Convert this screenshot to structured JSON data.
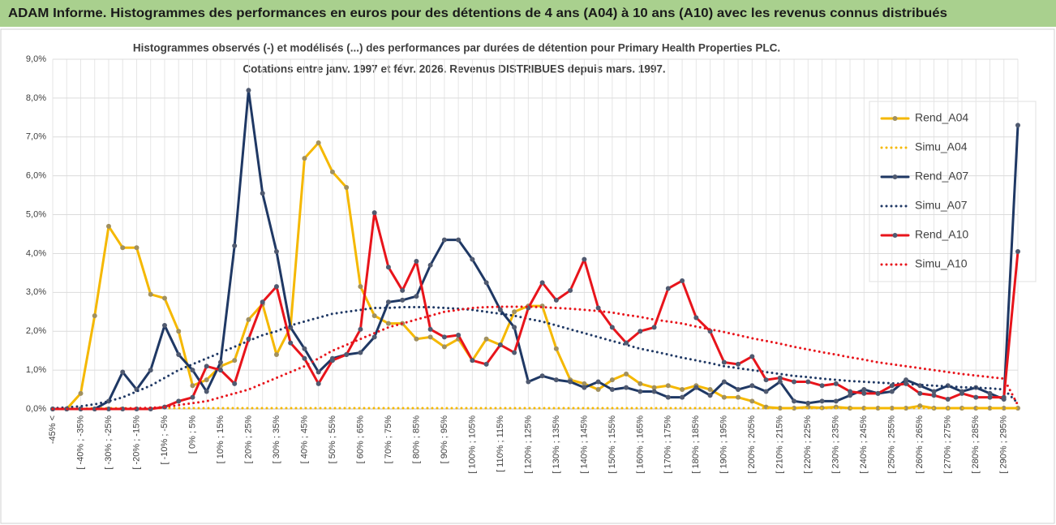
{
  "chart_data": {
    "type": "line",
    "title": "ADAM Informe. Histogrammes des performances en euros pour des détentions de 4 ans (A04) à 10 ans (A10) avec les revenus connus distribués",
    "subtitle": [
      "Histogrammes observés (-) et modélisés (...) des performances par durées de détention pour Primary Health Properties PLC.",
      "Cotations entre janv. 1997 et févr. 2026. Revenus DISTRIBUES depuis mars. 1997."
    ],
    "categories": [
      "-45% <",
      null,
      "[ -40% ; -35%",
      null,
      "[ -30% ; -25%",
      null,
      "[ -20% ; -15%",
      null,
      "[ -10% ; -5%",
      null,
      "[ 0% ; 5%",
      null,
      "[ 10% ; 15%",
      null,
      "[ 20% ; 25%",
      null,
      "[ 30% ; 35%",
      null,
      "[ 40% ; 45%",
      null,
      "[ 50% ; 55%",
      null,
      "[ 60% ; 65%",
      null,
      "[ 70% ; 75%",
      null,
      "[ 80% ; 85%",
      null,
      "[ 90% ; 95%",
      null,
      "[ 100% ; 105%",
      null,
      "[ 110% ; 115%",
      null,
      "[ 120% ; 125%",
      null,
      "[ 130% ; 135%",
      null,
      "[ 140% ; 145%",
      null,
      "[ 150% ; 155%",
      null,
      "[ 160% ; 165%",
      null,
      "[ 170% ; 175%",
      null,
      "[ 180% ; 185%",
      null,
      "[ 190% ; 195%",
      null,
      "[ 200% ; 205%",
      null,
      "[ 210% ; 215%",
      null,
      "[ 220% ; 225%",
      null,
      "[ 230% ; 235%",
      null,
      "[ 240% ; 245%",
      null,
      "[ 250% ; 255%",
      null,
      "[ 260% ; 265%",
      null,
      "[ 270% ; 275%",
      null,
      "[ 280% ; 285%",
      null,
      "[ 290% ; 295%",
      null
    ],
    "series": [
      {
        "name": "Rend_A04",
        "color": "#f5b800",
        "style": "solid",
        "markers": true,
        "values": [
          0,
          0,
          0.4,
          2.4,
          4.7,
          4.15,
          4.15,
          2.95,
          2.85,
          2.0,
          0.6,
          0.75,
          1.1,
          1.25,
          2.3,
          2.7,
          1.4,
          2.1,
          6.45,
          6.85,
          6.1,
          5.7,
          3.15,
          2.4,
          2.2,
          2.2,
          1.8,
          1.85,
          1.6,
          1.8,
          1.25,
          1.8,
          1.65,
          2.5,
          2.65,
          2.65,
          1.55,
          0.75,
          0.65,
          0.5,
          0.75,
          0.9,
          0.65,
          0.55,
          0.6,
          0.5,
          0.6,
          0.5,
          0.3,
          0.3,
          0.2,
          0.05,
          0.02,
          0.02,
          0.05,
          0.03,
          0.05,
          0.02,
          0.02,
          0.02,
          0.02,
          0.02,
          0.08,
          0.02,
          0.02,
          0.02,
          0.02,
          0.02,
          0.02,
          0.02
        ]
      },
      {
        "name": "Simu_A04",
        "color": "#f5b800",
        "style": "dotted",
        "markers": false,
        "values": [
          0,
          0,
          0.01,
          0.02,
          0.02,
          0.02,
          0.02,
          0.02,
          0.02,
          0.02,
          0.02,
          0.02,
          0.02,
          0.02,
          0.02,
          0.02,
          0.02,
          0.02,
          0.02,
          0.02,
          0.02,
          0.02,
          0.02,
          0.02,
          0.02,
          0.02,
          0.02,
          0.02,
          0.02,
          0.02,
          0.02,
          0.02,
          0.02,
          0.02,
          0.02,
          0.02,
          0.02,
          0.02,
          0.02,
          0.02,
          0.02,
          0.02,
          0.02,
          0.02,
          0.02,
          0.02,
          0.02,
          0.02,
          0.02,
          0.02,
          0.02,
          0.02,
          0.02,
          0.02,
          0.02,
          0.02,
          0.02,
          0.02,
          0.02,
          0.02,
          0.02,
          0.02,
          0.02,
          0.02,
          0.02,
          0.02,
          0.02,
          0.02,
          0.02,
          0.02
        ]
      },
      {
        "name": "Rend_A07",
        "color": "#1f3864",
        "style": "solid",
        "markers": true,
        "values": [
          0,
          0,
          0,
          0,
          0.2,
          0.95,
          0.5,
          1.0,
          2.15,
          1.4,
          1.0,
          0.45,
          1.2,
          4.2,
          8.2,
          5.55,
          4.05,
          2.1,
          1.55,
          0.95,
          1.3,
          1.4,
          1.45,
          1.85,
          2.75,
          2.8,
          2.9,
          3.7,
          4.35,
          4.35,
          3.85,
          3.25,
          2.55,
          2.1,
          0.7,
          0.85,
          0.75,
          0.7,
          0.55,
          0.7,
          0.5,
          0.55,
          0.45,
          0.45,
          0.3,
          0.3,
          0.55,
          0.35,
          0.7,
          0.5,
          0.6,
          0.45,
          0.7,
          0.2,
          0.15,
          0.2,
          0.2,
          0.35,
          0.5,
          0.4,
          0.45,
          0.75,
          0.6,
          0.45,
          0.6,
          0.45,
          0.55,
          0.4,
          0.25,
          7.3
        ]
      },
      {
        "name": "Simu_A07",
        "color": "#1f3864",
        "style": "dotted",
        "markers": false,
        "values": [
          0.02,
          0.04,
          0.07,
          0.12,
          0.2,
          0.3,
          0.45,
          0.6,
          0.8,
          1.0,
          1.15,
          1.3,
          1.45,
          1.6,
          1.75,
          1.9,
          2.0,
          2.15,
          2.25,
          2.35,
          2.45,
          2.5,
          2.55,
          2.6,
          2.6,
          2.62,
          2.62,
          2.62,
          2.6,
          2.58,
          2.55,
          2.5,
          2.45,
          2.4,
          2.32,
          2.25,
          2.15,
          2.05,
          1.95,
          1.85,
          1.75,
          1.65,
          1.55,
          1.48,
          1.4,
          1.32,
          1.25,
          1.18,
          1.1,
          1.05,
          1.0,
          0.95,
          0.9,
          0.85,
          0.82,
          0.78,
          0.75,
          0.72,
          0.7,
          0.68,
          0.66,
          0.64,
          0.62,
          0.6,
          0.58,
          0.56,
          0.55,
          0.53,
          0.5,
          0.15
        ]
      },
      {
        "name": "Rend_A10",
        "color": "#e8141b",
        "style": "solid",
        "markers": true,
        "values": [
          0,
          0,
          0,
          0,
          0,
          0,
          0,
          0,
          0.05,
          0.2,
          0.3,
          1.1,
          1.0,
          0.65,
          1.8,
          2.75,
          3.15,
          1.7,
          1.3,
          0.65,
          1.25,
          1.4,
          2.05,
          5.05,
          3.65,
          3.05,
          3.8,
          2.05,
          1.85,
          1.9,
          1.25,
          1.15,
          1.65,
          1.45,
          2.6,
          3.25,
          2.8,
          3.05,
          3.85,
          2.6,
          2.1,
          1.7,
          2.0,
          2.1,
          3.1,
          3.3,
          2.35,
          2.0,
          1.2,
          1.15,
          1.35,
          0.75,
          0.8,
          0.7,
          0.7,
          0.6,
          0.65,
          0.45,
          0.4,
          0.4,
          0.6,
          0.65,
          0.4,
          0.35,
          0.25,
          0.4,
          0.3,
          0.3,
          0.3,
          4.05
        ]
      },
      {
        "name": "Simu_A10",
        "color": "#e8141b",
        "style": "dotted",
        "markers": false,
        "values": [
          0,
          0,
          0,
          0,
          0,
          0.01,
          0.02,
          0.03,
          0.05,
          0.1,
          0.15,
          0.2,
          0.3,
          0.4,
          0.5,
          0.65,
          0.8,
          0.95,
          1.1,
          1.3,
          1.5,
          1.65,
          1.8,
          1.95,
          2.1,
          2.2,
          2.3,
          2.4,
          2.5,
          2.55,
          2.6,
          2.62,
          2.63,
          2.63,
          2.63,
          2.62,
          2.6,
          2.58,
          2.55,
          2.52,
          2.48,
          2.42,
          2.37,
          2.3,
          2.25,
          2.2,
          2.12,
          2.05,
          1.98,
          1.9,
          1.82,
          1.75,
          1.68,
          1.6,
          1.53,
          1.46,
          1.4,
          1.33,
          1.27,
          1.2,
          1.15,
          1.1,
          1.05,
          1.0,
          0.95,
          0.9,
          0.86,
          0.82,
          0.78,
          0.1
        ]
      }
    ],
    "ylim": [
      0,
      9
    ],
    "yticks": [
      {
        "value": 0,
        "label": "0,0%"
      },
      {
        "value": 1,
        "label": "1,0%"
      },
      {
        "value": 2,
        "label": "2,0%"
      },
      {
        "value": 3,
        "label": "3,0%"
      },
      {
        "value": 4,
        "label": "4,0%"
      },
      {
        "value": 5,
        "label": "5,0%"
      },
      {
        "value": 6,
        "label": "6,0%"
      },
      {
        "value": 7,
        "label": "7,0%"
      },
      {
        "value": 8,
        "label": "8,0%"
      },
      {
        "value": 9,
        "label": "9,0%"
      }
    ],
    "grid": true,
    "legend": "right"
  }
}
